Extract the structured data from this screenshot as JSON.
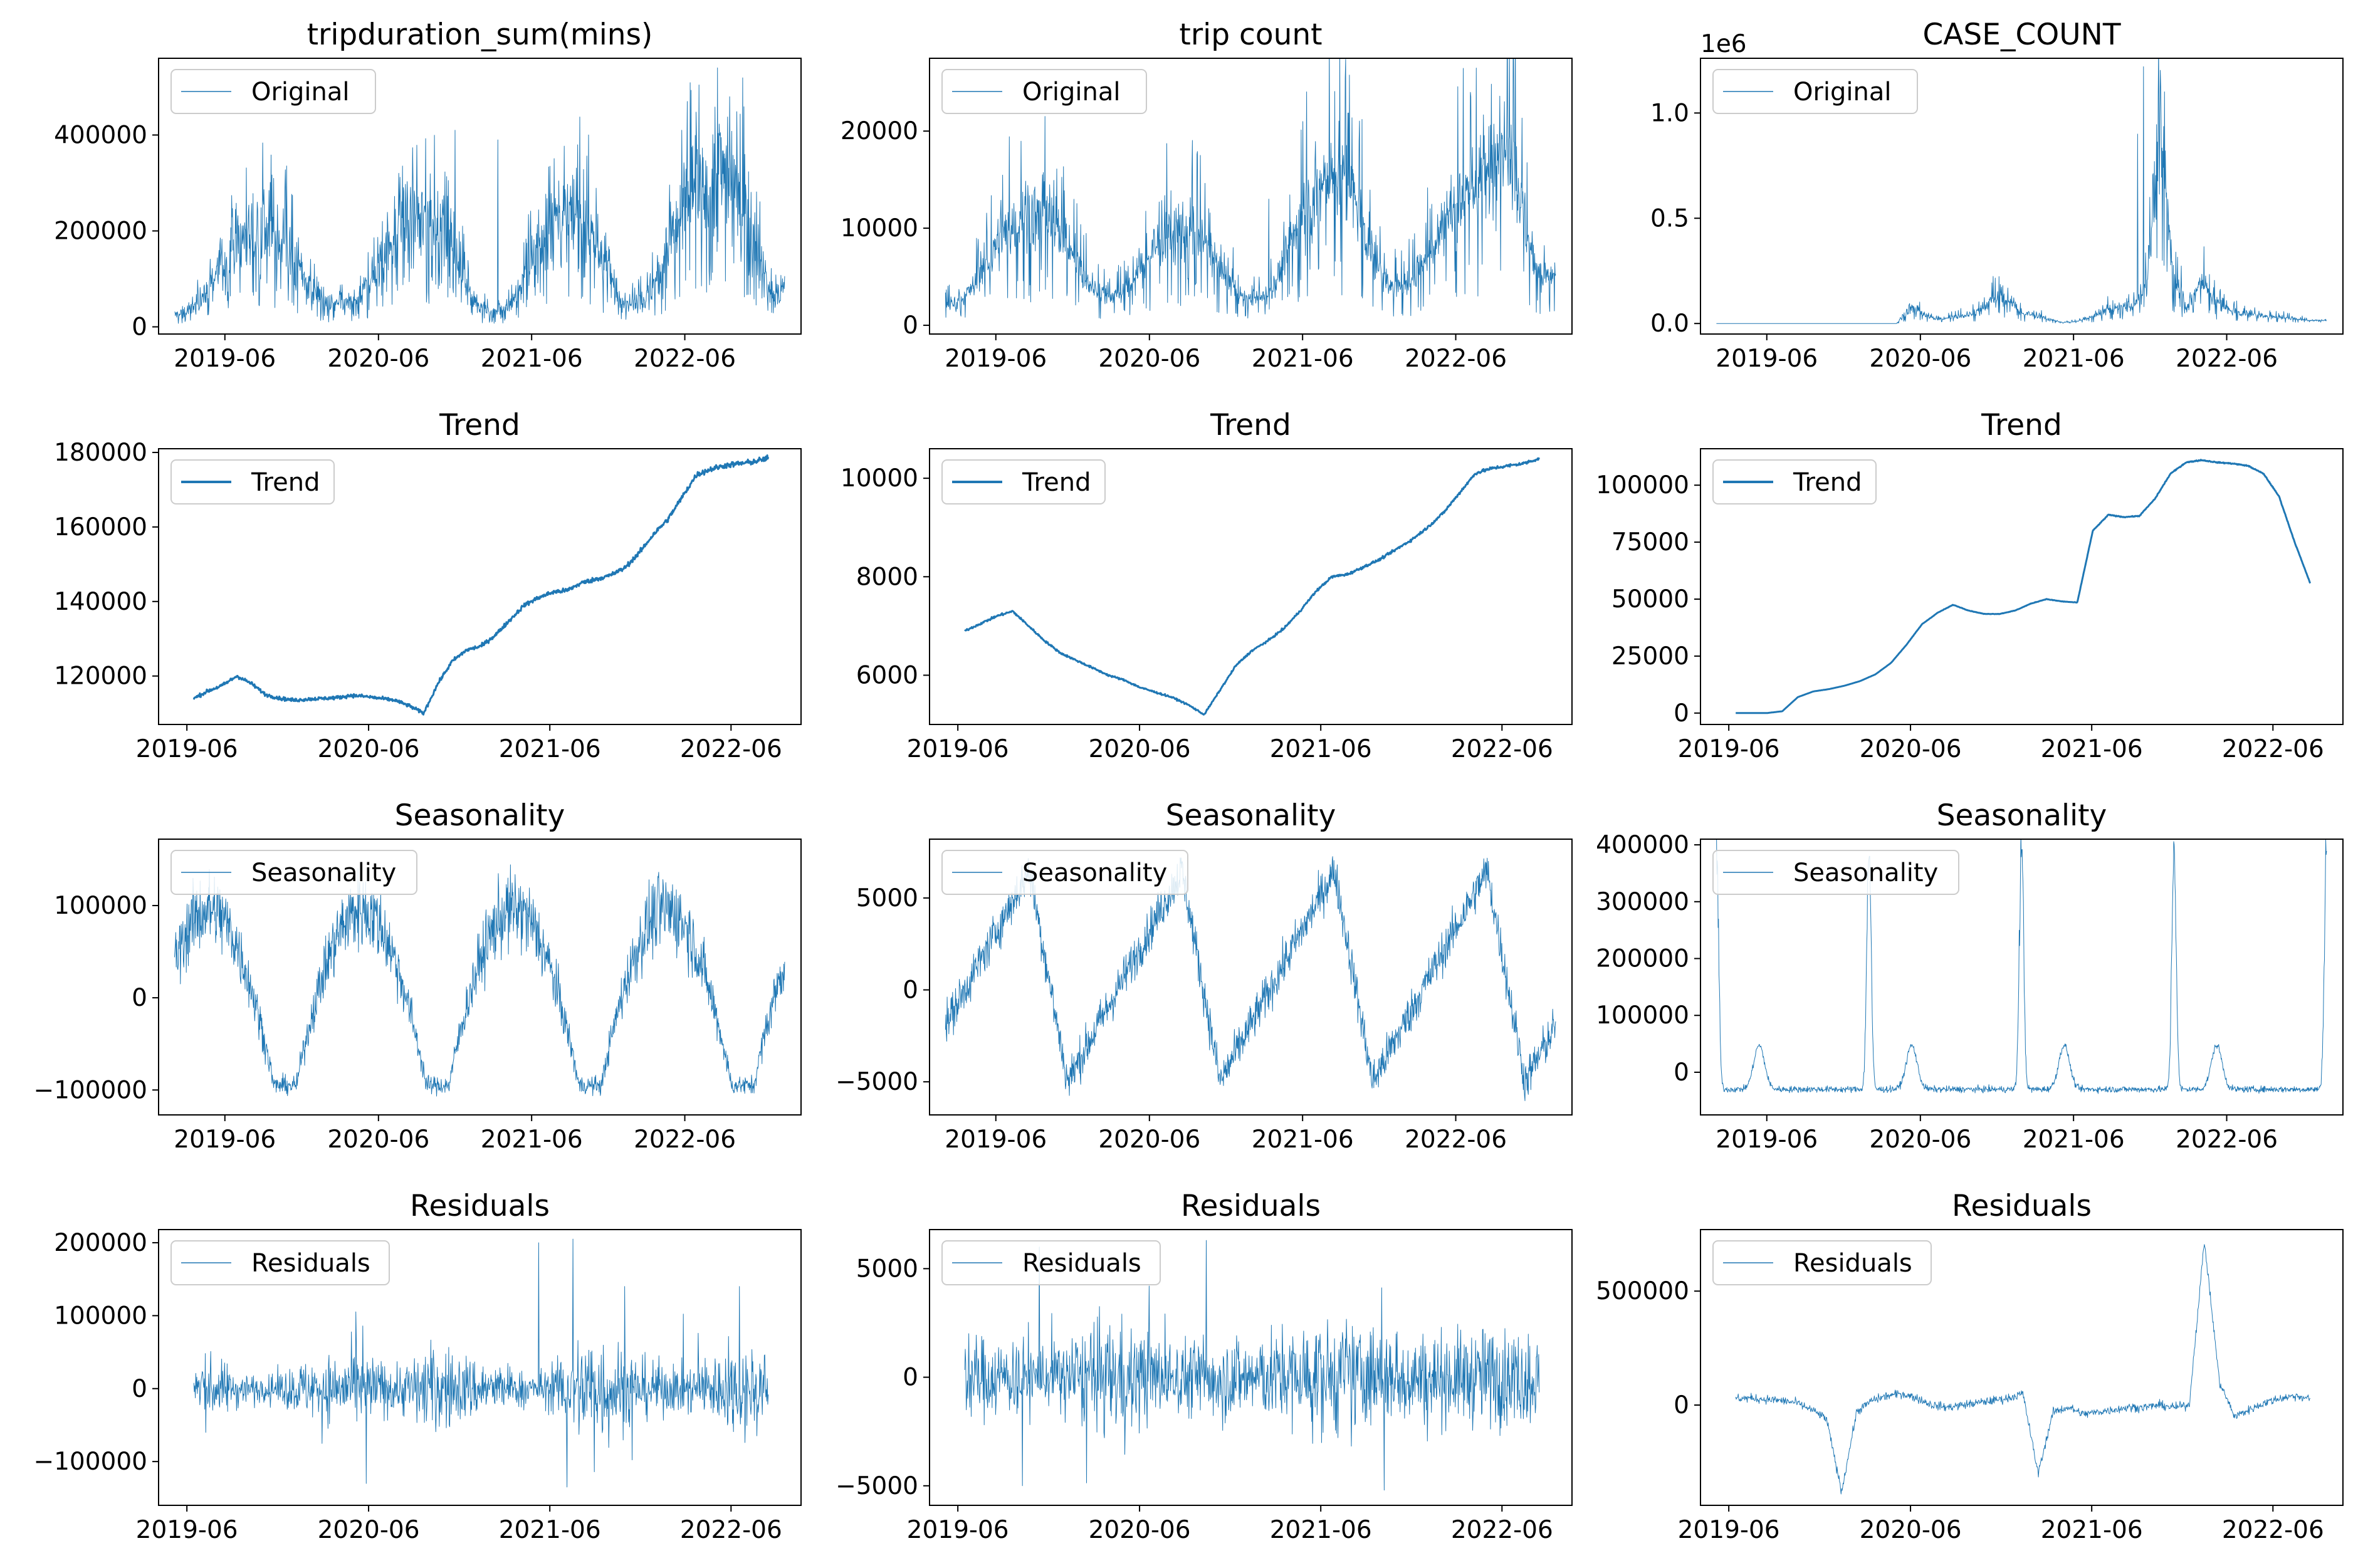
{
  "colors": {
    "line": "#1f77b4",
    "axis": "#000000",
    "legend_border": "#cccccc"
  },
  "chart_data": [
    {
      "type": "line",
      "title": "tripduration_sum(mins)",
      "x_start": "2019-02-01",
      "x_end": "2023-01-25",
      "xlim": [
        "2018-12-25",
        "2023-03-05"
      ],
      "ylim": [
        -15000,
        560000
      ],
      "yticks": [
        0,
        200000,
        400000
      ],
      "ytick_labels": [
        "0",
        "200000",
        "400000"
      ],
      "xticks": [
        "2019-06-01",
        "2020-06-01",
        "2021-06-01",
        "2022-06-01"
      ],
      "xtick_labels": [
        "2019-06",
        "2020-06",
        "2021-06",
        "2022-06"
      ],
      "legend": "Original",
      "line_width": 1,
      "offset": "",
      "series": {
        "base": [
          25000,
          30000,
          60000,
          110000,
          160000,
          190000,
          210000,
          200000,
          180000,
          120000,
          70000,
          50000,
          45000,
          55000,
          90000,
          150000,
          190000,
          210000,
          230000,
          200000,
          160000,
          90000,
          40000,
          30000,
          40000,
          90000,
          160000,
          210000,
          230000,
          230000,
          200000,
          140000,
          60000,
          50000,
          60000,
          120000,
          210000,
          260000,
          290000,
          320000,
          330000,
          270000,
          150000,
          70000,
          80000
        ],
        "noise": 0.45,
        "spikes": [
          [
            0.89,
            540000
          ],
          [
            0.84,
            470000
          ],
          [
            0.91,
            480000
          ],
          [
            0.46,
            410000
          ],
          [
            0.53,
            390000
          ]
        ]
      }
    },
    {
      "type": "line",
      "title": "trip count",
      "x_start": "2019-02-01",
      "x_end": "2023-01-25",
      "xlim": [
        "2018-12-25",
        "2023-03-05"
      ],
      "ylim": [
        -900,
        27500
      ],
      "yticks": [
        0,
        10000,
        20000
      ],
      "ytick_labels": [
        "0",
        "10000",
        "20000"
      ],
      "xticks": [
        "2019-06-01",
        "2020-06-01",
        "2021-06-01",
        "2022-06-01"
      ],
      "xtick_labels": [
        "2019-06",
        "2020-06",
        "2021-06",
        "2022-06"
      ],
      "legend": "Original",
      "line_width": 1,
      "offset": "",
      "series": {
        "base": [
          2000,
          2500,
          4000,
          6500,
          9000,
          10500,
          11500,
          11500,
          10500,
          8000,
          5000,
          3500,
          3000,
          3500,
          5500,
          8000,
          9500,
          10000,
          9500,
          8000,
          5500,
          3500,
          2500,
          3000,
          5000,
          9000,
          12000,
          14000,
          15000,
          14500,
          11000,
          6500,
          4000,
          4000,
          5500,
          8000,
          11000,
          13000,
          14500,
          15000,
          20000,
          17000,
          9000,
          5000,
          5500
        ],
        "noise": 0.3,
        "spikes": [
          [
            0.87,
            26500
          ],
          [
            0.86,
            24000
          ],
          [
            0.53,
            13000
          ],
          [
            0.62,
            17500
          ]
        ]
      }
    },
    {
      "type": "line",
      "title": "CASE_COUNT",
      "x_start": "2019-02-01",
      "x_end": "2023-01-25",
      "xlim": [
        "2018-12-25",
        "2023-03-05"
      ],
      "ylim": [
        -50000,
        1260000
      ],
      "yticks": [
        0,
        500000,
        1000000
      ],
      "ytick_labels": [
        "0.0",
        "0.5",
        "1.0"
      ],
      "xticks": [
        "2019-06-01",
        "2020-06-01",
        "2021-06-01",
        "2022-06-01"
      ],
      "xtick_labels": [
        "2019-06",
        "2020-06",
        "2021-06",
        "2022-06"
      ],
      "legend": "Original",
      "line_width": 1,
      "offset": "1e6",
      "series": {
        "base": [
          0,
          0,
          0,
          0,
          0,
          0,
          0,
          0,
          0,
          0,
          0,
          0,
          0,
          0,
          80000,
          40000,
          20000,
          30000,
          40000,
          60000,
          120000,
          110000,
          50000,
          40000,
          20000,
          5000,
          10000,
          30000,
          60000,
          80000,
          70000,
          200000,
          900000,
          200000,
          80000,
          200000,
          100000,
          60000,
          50000,
          40000,
          30000,
          30000,
          20000,
          15000,
          15000
        ],
        "noise": 0.35,
        "spikes": [
          [
            0.7,
            1220000
          ],
          [
            0.69,
            900000
          ],
          [
            0.71,
            600000
          ]
        ]
      }
    },
    {
      "type": "line",
      "title": "Trend",
      "x_start": "2019-06-15",
      "x_end": "2022-08-15",
      "xlim": [
        "2019-04-05",
        "2022-10-20"
      ],
      "ylim": [
        107000,
        181000
      ],
      "yticks": [
        120000,
        140000,
        160000,
        180000
      ],
      "ytick_labels": [
        "120000",
        "140000",
        "160000",
        "180000"
      ],
      "xticks": [
        "2019-06-01",
        "2020-06-01",
        "2021-06-01",
        "2022-06-01"
      ],
      "xtick_labels": [
        "2019-06",
        "2020-06",
        "2021-06",
        "2022-06"
      ],
      "legend": "Trend",
      "line_width": 3,
      "offset": "",
      "series": {
        "base": [
          114000,
          116000,
          117500,
          120000,
          118000,
          115000,
          114000,
          113500,
          113800,
          114000,
          114200,
          114800,
          114500,
          114000,
          113500,
          112000,
          110000,
          118000,
          124000,
          127000,
          128000,
          131000,
          135000,
          139000,
          141000,
          142500,
          143000,
          145000,
          146000,
          147000,
          149000,
          153000,
          158000,
          162000,
          168000,
          174000,
          175500,
          176500,
          177000,
          177500,
          178500
        ],
        "noise": 0.004,
        "spikes": []
      }
    },
    {
      "type": "line",
      "title": "Trend",
      "x_start": "2019-06-15",
      "x_end": "2022-08-15",
      "xlim": [
        "2019-04-05",
        "2022-10-20"
      ],
      "ylim": [
        5000,
        10600
      ],
      "yticks": [
        6000,
        8000,
        10000
      ],
      "ytick_labels": [
        "6000",
        "8000",
        "10000"
      ],
      "xticks": [
        "2019-06-01",
        "2020-06-01",
        "2021-06-01",
        "2022-06-01"
      ],
      "xtick_labels": [
        "2019-06",
        "2020-06",
        "2021-06",
        "2022-06"
      ],
      "legend": "Trend",
      "line_width": 3,
      "offset": "",
      "series": {
        "base": [
          6900,
          7050,
          7200,
          7300,
          7000,
          6700,
          6450,
          6300,
          6150,
          6000,
          5900,
          5750,
          5650,
          5550,
          5400,
          5200,
          5700,
          6200,
          6500,
          6700,
          6950,
          7300,
          7700,
          8000,
          8050,
          8200,
          8350,
          8550,
          8750,
          9000,
          9300,
          9700,
          10100,
          10200,
          10250,
          10300,
          10400
        ],
        "noise": 0.003,
        "spikes": []
      }
    },
    {
      "type": "line",
      "title": "Trend",
      "x_start": "2019-06-15",
      "x_end": "2022-08-15",
      "xlim": [
        "2019-04-05",
        "2022-10-20"
      ],
      "ylim": [
        -5000,
        116000
      ],
      "yticks": [
        0,
        25000,
        50000,
        75000,
        100000
      ],
      "ytick_labels": [
        "0",
        "25000",
        "50000",
        "75000",
        "100000"
      ],
      "xticks": [
        "2019-06-01",
        "2020-06-01",
        "2021-06-01",
        "2022-06-01"
      ],
      "xtick_labels": [
        "2019-06",
        "2020-06",
        "2021-06",
        "2022-06"
      ],
      "legend": "Trend",
      "line_width": 3,
      "offset": "",
      "series": {
        "base": [
          0,
          0,
          0,
          800,
          7000,
          9500,
          10500,
          12000,
          14000,
          17000,
          22000,
          30000,
          39000,
          44000,
          47500,
          45000,
          43500,
          43500,
          45000,
          48000,
          50000,
          49000,
          48500,
          80000,
          87000,
          86000,
          86500,
          94000,
          105000,
          110000,
          111000,
          110000,
          109500,
          108500,
          105000,
          95000,
          75000,
          57000
        ],
        "noise": 0.002,
        "spikes": []
      }
    },
    {
      "type": "line",
      "title": "Seasonality",
      "x_start": "2019-02-01",
      "x_end": "2023-01-25",
      "xlim": [
        "2018-12-25",
        "2023-03-05"
      ],
      "ylim": [
        -127000,
        172000
      ],
      "yticks": [
        -100000,
        0,
        100000
      ],
      "ytick_labels": [
        "−100000",
        "0",
        "100000"
      ],
      "xticks": [
        "2019-06-01",
        "2020-06-01",
        "2021-06-01",
        "2022-06-01"
      ],
      "xtick_labels": [
        "2019-06",
        "2020-06",
        "2021-06",
        "2022-06"
      ],
      "legend": "Seasonality",
      "line_width": 1,
      "offset": "",
      "series": {
        "seasonal": "smooth",
        "amp": [
          -95000,
          95000
        ],
        "period_frac": 0.25,
        "phase": 0.05,
        "noise": 32000,
        "spikes": []
      }
    },
    {
      "type": "line",
      "title": "Seasonality",
      "x_start": "2019-02-01",
      "x_end": "2023-01-25",
      "xlim": [
        "2018-12-25",
        "2023-03-05"
      ],
      "ylim": [
        -6800,
        8200
      ],
      "yticks": [
        -5000,
        0,
        5000
      ],
      "ytick_labels": [
        "−5000",
        "0",
        "5000"
      ],
      "xticks": [
        "2019-06-01",
        "2020-06-01",
        "2021-06-01",
        "2022-06-01"
      ],
      "xtick_labels": [
        "2019-06",
        "2020-06",
        "2021-06",
        "2022-06"
      ],
      "legend": "Seasonality",
      "line_width": 1,
      "offset": "",
      "series": {
        "seasonal": "ramp",
        "amp": [
          -5000,
          6500
        ],
        "period_frac": 0.25,
        "phase": 0.05,
        "noise": 1100,
        "spikes": []
      }
    },
    {
      "type": "line",
      "title": "Seasonality",
      "x_start": "2019-02-01",
      "x_end": "2023-01-25",
      "xlim": [
        "2018-12-25",
        "2023-03-05"
      ],
      "ylim": [
        -75000,
        410000
      ],
      "yticks": [
        0,
        100000,
        200000,
        300000,
        400000
      ],
      "ytick_labels": [
        "0",
        "100000",
        "200000",
        "300000",
        "400000"
      ],
      "xticks": [
        "2019-06-01",
        "2020-06-01",
        "2021-06-01",
        "2022-06-01"
      ],
      "xtick_labels": [
        "2019-06",
        "2020-06",
        "2021-06",
        "2022-06"
      ],
      "legend": "Seasonality",
      "line_width": 1,
      "offset": "",
      "series": {
        "seasonal": "peaky",
        "amp": [
          -30000,
          400000
        ],
        "period_frac": 0.25,
        "phase": 0.0,
        "noise": 9000,
        "spikes": []
      }
    },
    {
      "type": "line",
      "title": "Residuals",
      "x_start": "2019-06-15",
      "x_end": "2022-08-15",
      "xlim": [
        "2019-04-05",
        "2022-10-20"
      ],
      "ylim": [
        -160000,
        218000
      ],
      "yticks": [
        -100000,
        0,
        100000,
        200000
      ],
      "ytick_labels": [
        "−100000",
        "0",
        "100000",
        "200000"
      ],
      "xticks": [
        "2019-06-01",
        "2020-06-01",
        "2021-06-01",
        "2022-06-01"
      ],
      "xtick_labels": [
        "2019-06",
        "2020-06",
        "2021-06",
        "2022-06"
      ],
      "legend": "Residuals",
      "line_width": 1,
      "offset": "",
      "series": {
        "resid": [
          45000,
          40000,
          30000,
          20000,
          15000,
          25000,
          35000,
          40000,
          45000,
          50000,
          45000,
          30000,
          40000,
          55000,
          55000,
          45000,
          40000,
          30000,
          25000,
          20000,
          30000,
          60000,
          80000,
          70000,
          55000,
          40000,
          35000,
          30000,
          35000,
          45000,
          55000,
          60000,
          55000
        ],
        "spikes": [
          [
            0.66,
            205000
          ],
          [
            0.6,
            200000
          ],
          [
            0.75,
            140000
          ],
          [
            0.95,
            140000
          ],
          [
            0.65,
            -135000
          ],
          [
            0.3,
            -130000
          ]
        ]
      }
    },
    {
      "type": "line",
      "title": "Residuals",
      "x_start": "2019-06-15",
      "x_end": "2022-08-15",
      "xlim": [
        "2019-04-05",
        "2022-10-20"
      ],
      "ylim": [
        -5900,
        6800
      ],
      "yticks": [
        -5000,
        0,
        5000
      ],
      "ytick_labels": [
        "−5000",
        "0",
        "5000"
      ],
      "xticks": [
        "2019-06-01",
        "2020-06-01",
        "2021-06-01",
        "2022-06-01"
      ],
      "xtick_labels": [
        "2019-06",
        "2020-06",
        "2021-06",
        "2022-06"
      ],
      "legend": "Residuals",
      "line_width": 1,
      "offset": "",
      "series": {
        "resid": [
          1800,
          1800,
          1700,
          1600,
          1500,
          2000,
          2300,
          2500,
          2200,
          1600,
          1700,
          1800,
          1900,
          1800,
          2000,
          2200,
          2400,
          2500,
          2400,
          2200,
          2000,
          1900,
          2000,
          2100,
          2200,
          2100,
          2000
        ],
        "spikes": [
          [
            0.13,
            6000
          ],
          [
            0.42,
            6300
          ],
          [
            0.73,
            -5200
          ],
          [
            0.1,
            -5000
          ]
        ]
      }
    },
    {
      "type": "line",
      "title": "Residuals",
      "x_start": "2019-06-15",
      "x_end": "2022-08-15",
      "xlim": [
        "2019-04-05",
        "2022-10-20"
      ],
      "ylim": [
        -440000,
        770000
      ],
      "yticks": [
        0,
        500000
      ],
      "ytick_labels": [
        "0",
        "500000"
      ],
      "xticks": [
        "2019-06-01",
        "2020-06-01",
        "2021-06-01",
        "2022-06-01"
      ],
      "xtick_labels": [
        "2019-06",
        "2020-06",
        "2021-06",
        "2022-06"
      ],
      "legend": "Residuals",
      "line_width": 1,
      "offset": "",
      "series": {
        "resid_curve": [
          30000,
          30000,
          25000,
          20000,
          10000,
          -20000,
          -60000,
          -380000,
          -30000,
          20000,
          40000,
          50000,
          30000,
          0,
          -10000,
          0,
          10000,
          20000,
          30000,
          50000,
          -300000,
          -30000,
          -10000,
          -40000,
          -30000,
          -20000,
          -10000,
          -10000,
          0,
          -10000,
          0,
          720000,
          100000,
          -50000,
          -20000,
          10000,
          30000,
          40000,
          30000
        ],
        "noise": 18000,
        "spikes": []
      }
    }
  ]
}
